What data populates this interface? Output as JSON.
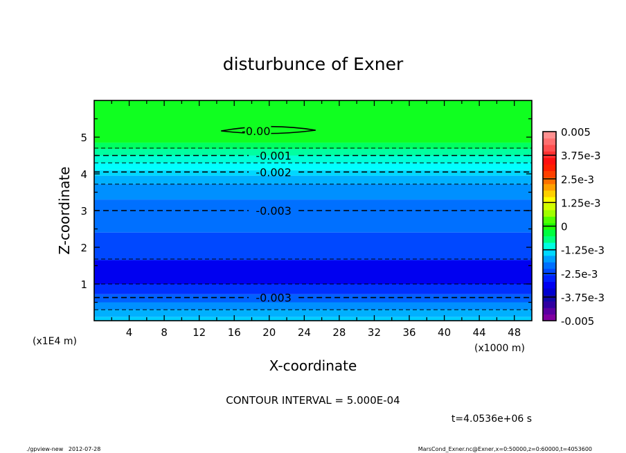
{
  "chart_data": {
    "type": "heatmap",
    "title": "disturbunce of Exner",
    "xlabel": "X-coordinate",
    "ylabel": "Z-coordinate",
    "x_unit": "(x1000 m)",
    "y_unit": "(x1E4 m)",
    "xlim": [
      0,
      50
    ],
    "ylim": [
      0,
      6
    ],
    "x_ticks": [
      4,
      8,
      12,
      16,
      20,
      24,
      28,
      32,
      36,
      40,
      44,
      48
    ],
    "y_ticks": [
      1,
      2,
      3,
      4,
      5
    ],
    "bands": [
      {
        "z": [
          4.85,
          6.0
        ],
        "color": "#10ff20"
      },
      {
        "z": [
          4.68,
          4.85
        ],
        "color": "#00ff60"
      },
      {
        "z": [
          4.5,
          4.68
        ],
        "color": "#00ffa0"
      },
      {
        "z": [
          4.3,
          4.5
        ],
        "color": "#00ffd8"
      },
      {
        "z": [
          4.1,
          4.3
        ],
        "color": "#00ffff"
      },
      {
        "z": [
          3.95,
          4.1
        ],
        "color": "#00d8ff"
      },
      {
        "z": [
          3.72,
          3.95
        ],
        "color": "#00b0ff"
      },
      {
        "z": [
          3.3,
          3.72
        ],
        "color": "#0090ff"
      },
      {
        "z": [
          2.4,
          3.3
        ],
        "color": "#0070ff"
      },
      {
        "z": [
          1.65,
          2.4
        ],
        "color": "#0048ff"
      },
      {
        "z": [
          1.0,
          1.65
        ],
        "color": "#0000f0"
      },
      {
        "z": [
          0.72,
          1.0
        ],
        "color": "#0030ff"
      },
      {
        "z": [
          0.5,
          0.72
        ],
        "color": "#0060ff"
      },
      {
        "z": [
          0.3,
          0.5
        ],
        "color": "#0090ff"
      },
      {
        "z": [
          0.1,
          0.3
        ],
        "color": "#00b0ff"
      },
      {
        "z": [
          0.0,
          0.1
        ],
        "color": "#00d0ff"
      }
    ],
    "contours": [
      {
        "z": 4.7,
        "dashed": true,
        "label": ""
      },
      {
        "z": 4.5,
        "dashed": true,
        "label": "-0.001"
      },
      {
        "z": 4.3,
        "dashed": true,
        "label": ""
      },
      {
        "z": 4.05,
        "dashed": true,
        "label": "-0.002"
      },
      {
        "z": 3.72,
        "dashed": true,
        "label": ""
      },
      {
        "z": 3.0,
        "dashed": true,
        "label": "-0.003"
      },
      {
        "z": 1.68,
        "dashed": true,
        "label": ""
      },
      {
        "z": 1.0,
        "dashed": true,
        "label": ""
      },
      {
        "z": 0.63,
        "dashed": true,
        "label": "-0.003"
      },
      {
        "z": 0.3,
        "dashed": true,
        "label": ""
      }
    ],
    "zero_contour": {
      "x": [
        14.5,
        25.3
      ],
      "z": 5.17,
      "label": "-0.00"
    },
    "colorbar": {
      "min": -0.005,
      "max": 0.005,
      "step": 0.0005,
      "labels": [
        "0.005",
        "3.75e-3",
        "2.5e-3",
        "1.25e-3",
        "0",
        "-1.25e-3",
        "-2.5e-3",
        "-3.75e-3",
        "-0.005"
      ],
      "colors": [
        "#8000a0",
        "#5a00a0",
        "#3000a0",
        "#1008a8",
        "#0000d0",
        "#0000f0",
        "#0020ff",
        "#0048ff",
        "#0070ff",
        "#00a0ff",
        "#00d8ff",
        "#00ffe0",
        "#00ff80",
        "#00ff40",
        "#20ff00",
        "#50ff00",
        "#a0ff00",
        "#d0ff00",
        "#ffff00",
        "#ffd000",
        "#ffa000",
        "#ff7000",
        "#ff4000",
        "#ff2000",
        "#ff1010",
        "#ff3030",
        "#ff5050",
        "#ff7070",
        "#ff9090"
      ]
    },
    "contour_interval": "CONTOUR INTERVAL = 5.000E-04",
    "time": "t=4.0536e+06 s"
  },
  "footer": {
    "left": "./gpview-new   2012-07-28",
    "right": "MarsCond_Exner.nc@Exner,x=0:50000,z=0:60000,t=4053600"
  }
}
